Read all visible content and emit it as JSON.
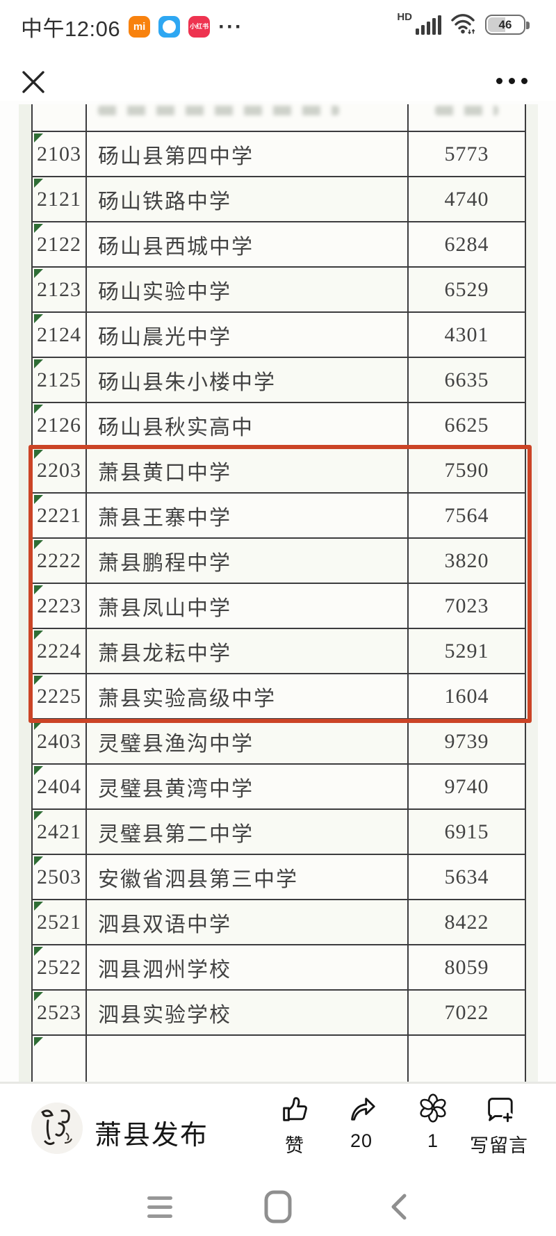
{
  "status_bar": {
    "time": "中午12:06",
    "app_icon_mi_text": "mi",
    "app_icon_xhs_text": "小红书",
    "more_dots": "···",
    "network_label": "HD",
    "battery_level": "46"
  },
  "table": {
    "rows": [
      {
        "code": "2103",
        "name": "砀山县第四中学",
        "value": "5773",
        "highlight": false
      },
      {
        "code": "2121",
        "name": "砀山铁路中学",
        "value": "4740",
        "highlight": false
      },
      {
        "code": "2122",
        "name": "砀山县西城中学",
        "value": "6284",
        "highlight": false
      },
      {
        "code": "2123",
        "name": "砀山实验中学",
        "value": "6529",
        "highlight": false
      },
      {
        "code": "2124",
        "name": "砀山晨光中学",
        "value": "4301",
        "highlight": false
      },
      {
        "code": "2125",
        "name": "砀山县朱小楼中学",
        "value": "6635",
        "highlight": false
      },
      {
        "code": "2126",
        "name": "砀山县秋实高中",
        "value": "6625",
        "highlight": false
      },
      {
        "code": "2203",
        "name": "萧县黄口中学",
        "value": "7590",
        "highlight": true
      },
      {
        "code": "2221",
        "name": "萧县王寨中学",
        "value": "7564",
        "highlight": true
      },
      {
        "code": "2222",
        "name": "萧县鹏程中学",
        "value": "3820",
        "highlight": true
      },
      {
        "code": "2223",
        "name": "萧县凤山中学",
        "value": "7023",
        "highlight": true
      },
      {
        "code": "2224",
        "name": "萧县龙耘中学",
        "value": "5291",
        "highlight": true
      },
      {
        "code": "2225",
        "name": "萧县实验高级中学",
        "value": "1604",
        "highlight": true
      },
      {
        "code": "2403",
        "name": "灵璧县渔沟中学",
        "value": "9739",
        "highlight": false
      },
      {
        "code": "2404",
        "name": "灵璧县黄湾中学",
        "value": "9740",
        "highlight": false
      },
      {
        "code": "2421",
        "name": "灵璧县第二中学",
        "value": "6915",
        "highlight": false
      },
      {
        "code": "2503",
        "name": "安徽省泗县第三中学",
        "value": "5634",
        "highlight": false
      },
      {
        "code": "2521",
        "name": "泗县双语中学",
        "value": "8422",
        "highlight": false
      },
      {
        "code": "2522",
        "name": "泗县泗州学校",
        "value": "8059",
        "highlight": false
      },
      {
        "code": "2523",
        "name": "泗县实验学校",
        "value": "7022",
        "highlight": false
      }
    ]
  },
  "footer": {
    "account_name": "萧县发布",
    "actions": [
      {
        "name": "like",
        "label": "赞"
      },
      {
        "name": "share",
        "label": "20"
      },
      {
        "name": "wow",
        "label": "1"
      },
      {
        "name": "comment",
        "label": "写留言"
      }
    ]
  },
  "colors": {
    "highlight_red": "#cb4426",
    "corner_triangle_green": "#2f6d35",
    "mi_orange": "#f8820e",
    "browser_blue": "#2ea7f2",
    "xiaohongshu_red": "#ee3350"
  }
}
